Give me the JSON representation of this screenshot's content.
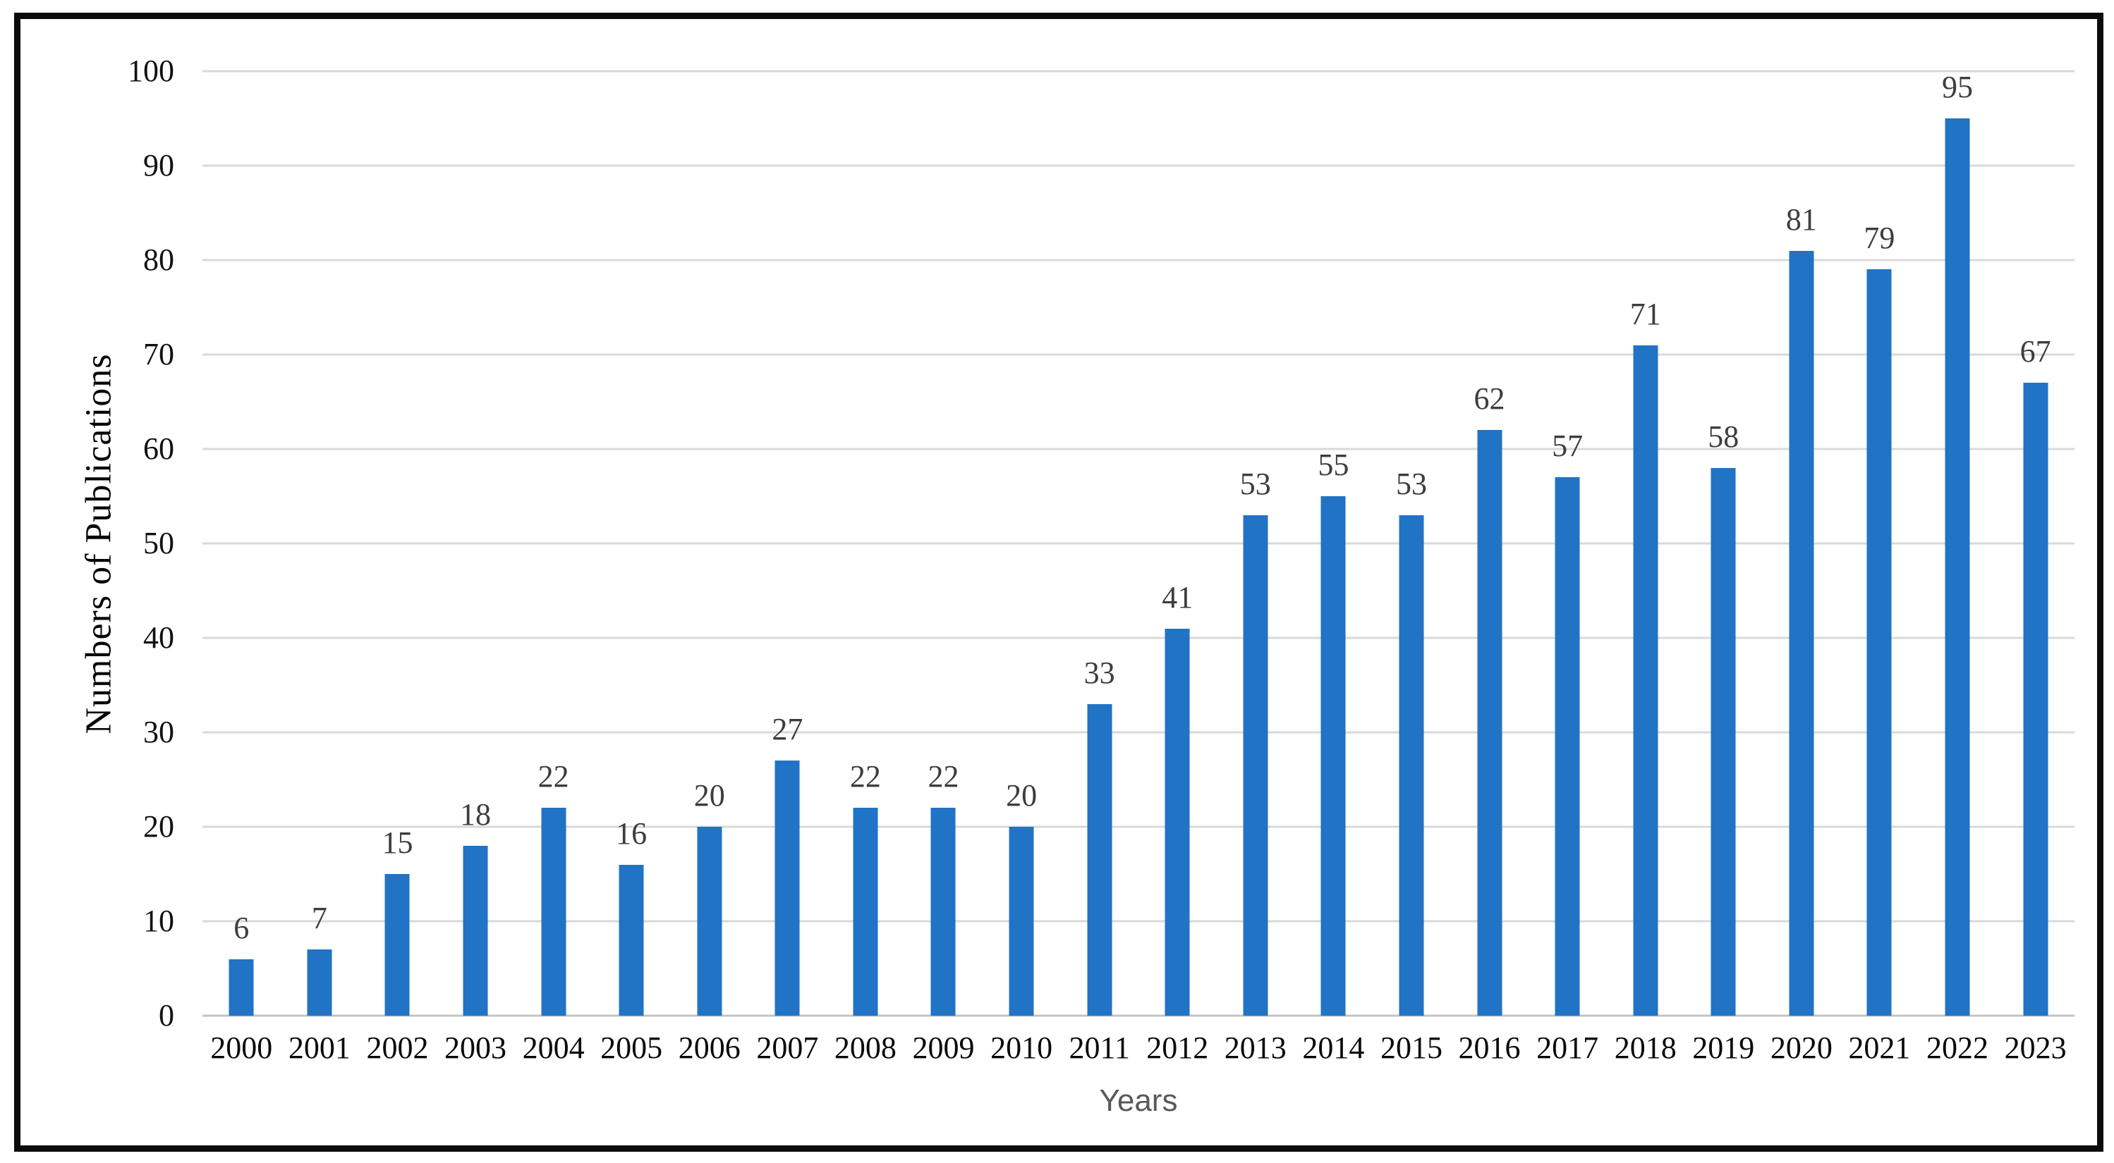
{
  "figure": {
    "frame_color": "#0b0b0b",
    "background": "#ffffff"
  },
  "chart_data": {
    "type": "bar",
    "title": "",
    "xlabel": "Years",
    "ylabel": "Numbers of Publications",
    "categories": [
      "2000",
      "2001",
      "2002",
      "2003",
      "2004",
      "2005",
      "2006",
      "2007",
      "2008",
      "2009",
      "2010",
      "2011",
      "2012",
      "2013",
      "2014",
      "2015",
      "2016",
      "2017",
      "2018",
      "2019",
      "2020",
      "2021",
      "2022",
      "2023"
    ],
    "values": [
      6,
      7,
      15,
      18,
      22,
      16,
      20,
      27,
      22,
      22,
      20,
      33,
      41,
      53,
      55,
      53,
      62,
      57,
      71,
      58,
      81,
      79,
      95,
      67
    ],
    "ylim": [
      0,
      100
    ],
    "yticks": [
      0,
      10,
      20,
      30,
      40,
      50,
      60,
      70,
      80,
      90,
      100
    ],
    "grid": "horizontal",
    "legend_position": "none",
    "data_labels": true,
    "bar_color": "#2173c5",
    "gridline_color": "#d9d9d9",
    "axis_line_color": "#c3c3c3",
    "tick_label_color": "#111111",
    "data_label_color": "#3d3d3d",
    "x_title_color": "#595959"
  }
}
